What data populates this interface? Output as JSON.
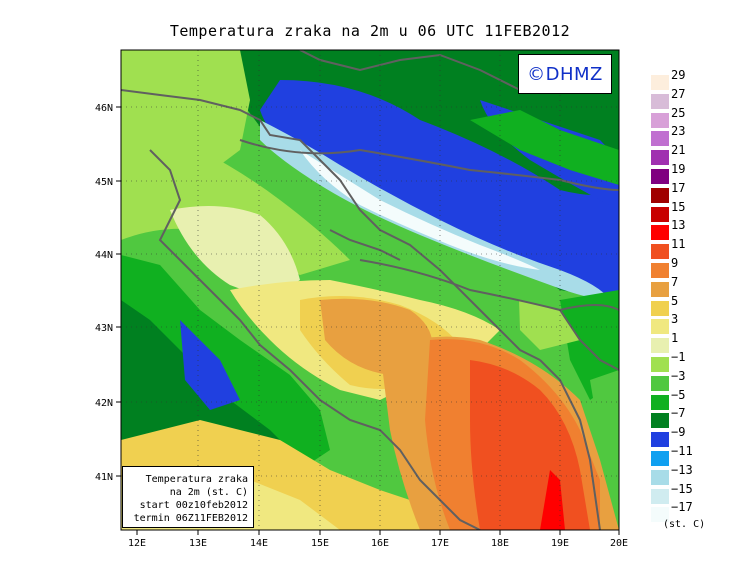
{
  "title": "Temperatura zraka na 2m u 06 UTC 11FEB2012",
  "logo": "©DHMZ",
  "info_box": {
    "line1": "Temperatura zraka",
    "line2": "na 2m (st. C)",
    "line3": "start 00z10feb2012",
    "line4": "termin 06Z11FEB2012"
  },
  "axes": {
    "lon_labels": [
      "12E",
      "13E",
      "14E",
      "15E",
      "16E",
      "17E",
      "18E",
      "19E",
      "20E"
    ],
    "lat_labels": [
      "46N",
      "45N",
      "44N",
      "43N",
      "42N",
      "41N"
    ]
  },
  "legend": {
    "units": "(st. C)",
    "levels": [
      "29",
      "27",
      "25",
      "23",
      "21",
      "19",
      "17",
      "15",
      "13",
      "11",
      "9",
      "7",
      "5",
      "3",
      "1",
      "−1",
      "−3",
      "−5",
      "−7",
      "−9",
      "−11",
      "−13",
      "−15",
      "−17"
    ],
    "colors": [
      "#fdeedd",
      "#d8bcd8",
      "#d8a0d8",
      "#c070d0",
      "#a030b0",
      "#800080",
      "#a00000",
      "#c80000",
      "#ff0000",
      "#f05020",
      "#f08030",
      "#e8a040",
      "#f0d050",
      "#f0e880",
      "#e8f0b0",
      "#a0e050",
      "#50c840",
      "#10b020",
      "#008020",
      "#2040e0",
      "#10a0f0",
      "#a8dce8",
      "#d0ecf0",
      "#f4fcfc"
    ]
  }
}
